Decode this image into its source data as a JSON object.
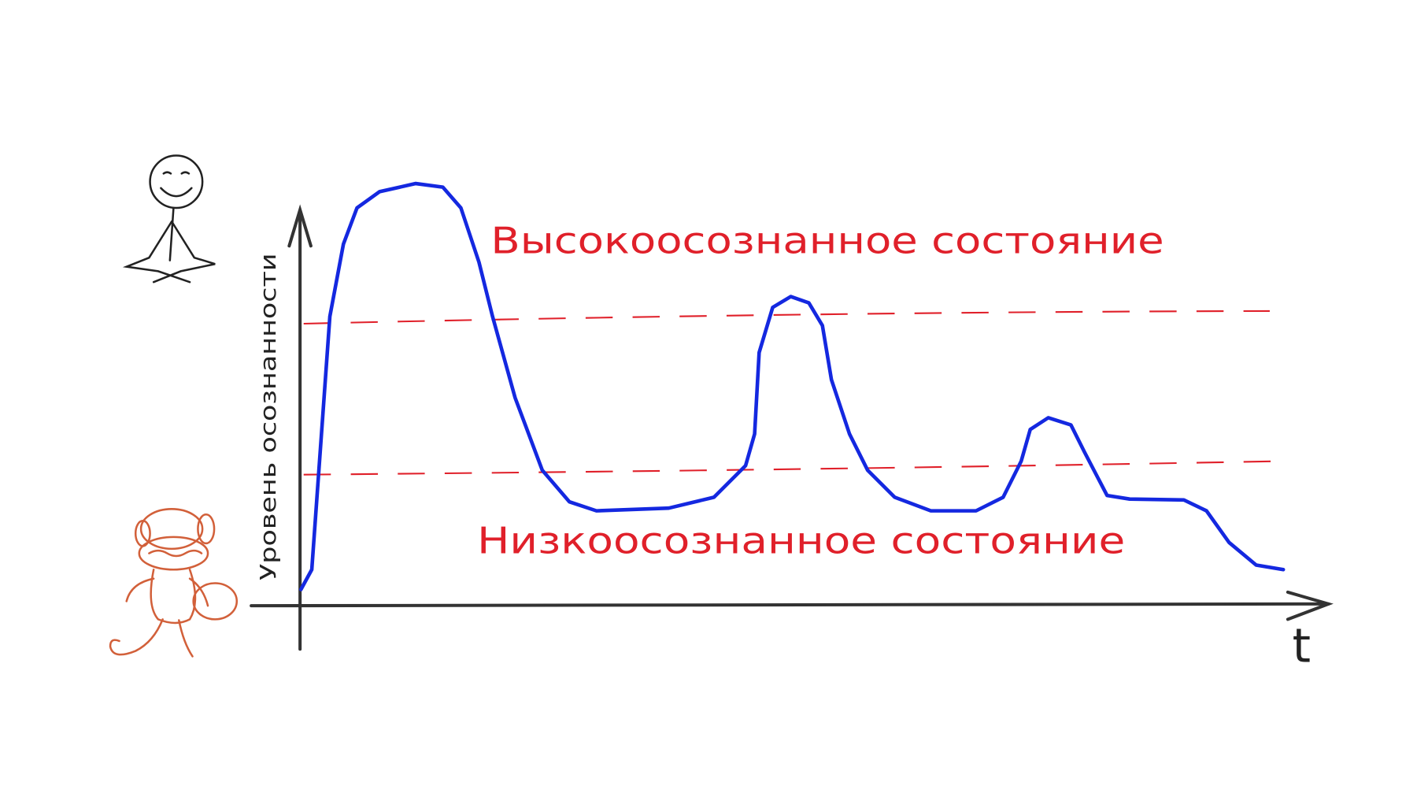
{
  "diagram": {
    "high_state_label": "Высокоосознанное состояние",
    "low_state_label": "Низкоосознанное состояние",
    "y_axis_label": "Уровень осознанности",
    "x_axis_label": "t"
  }
}
